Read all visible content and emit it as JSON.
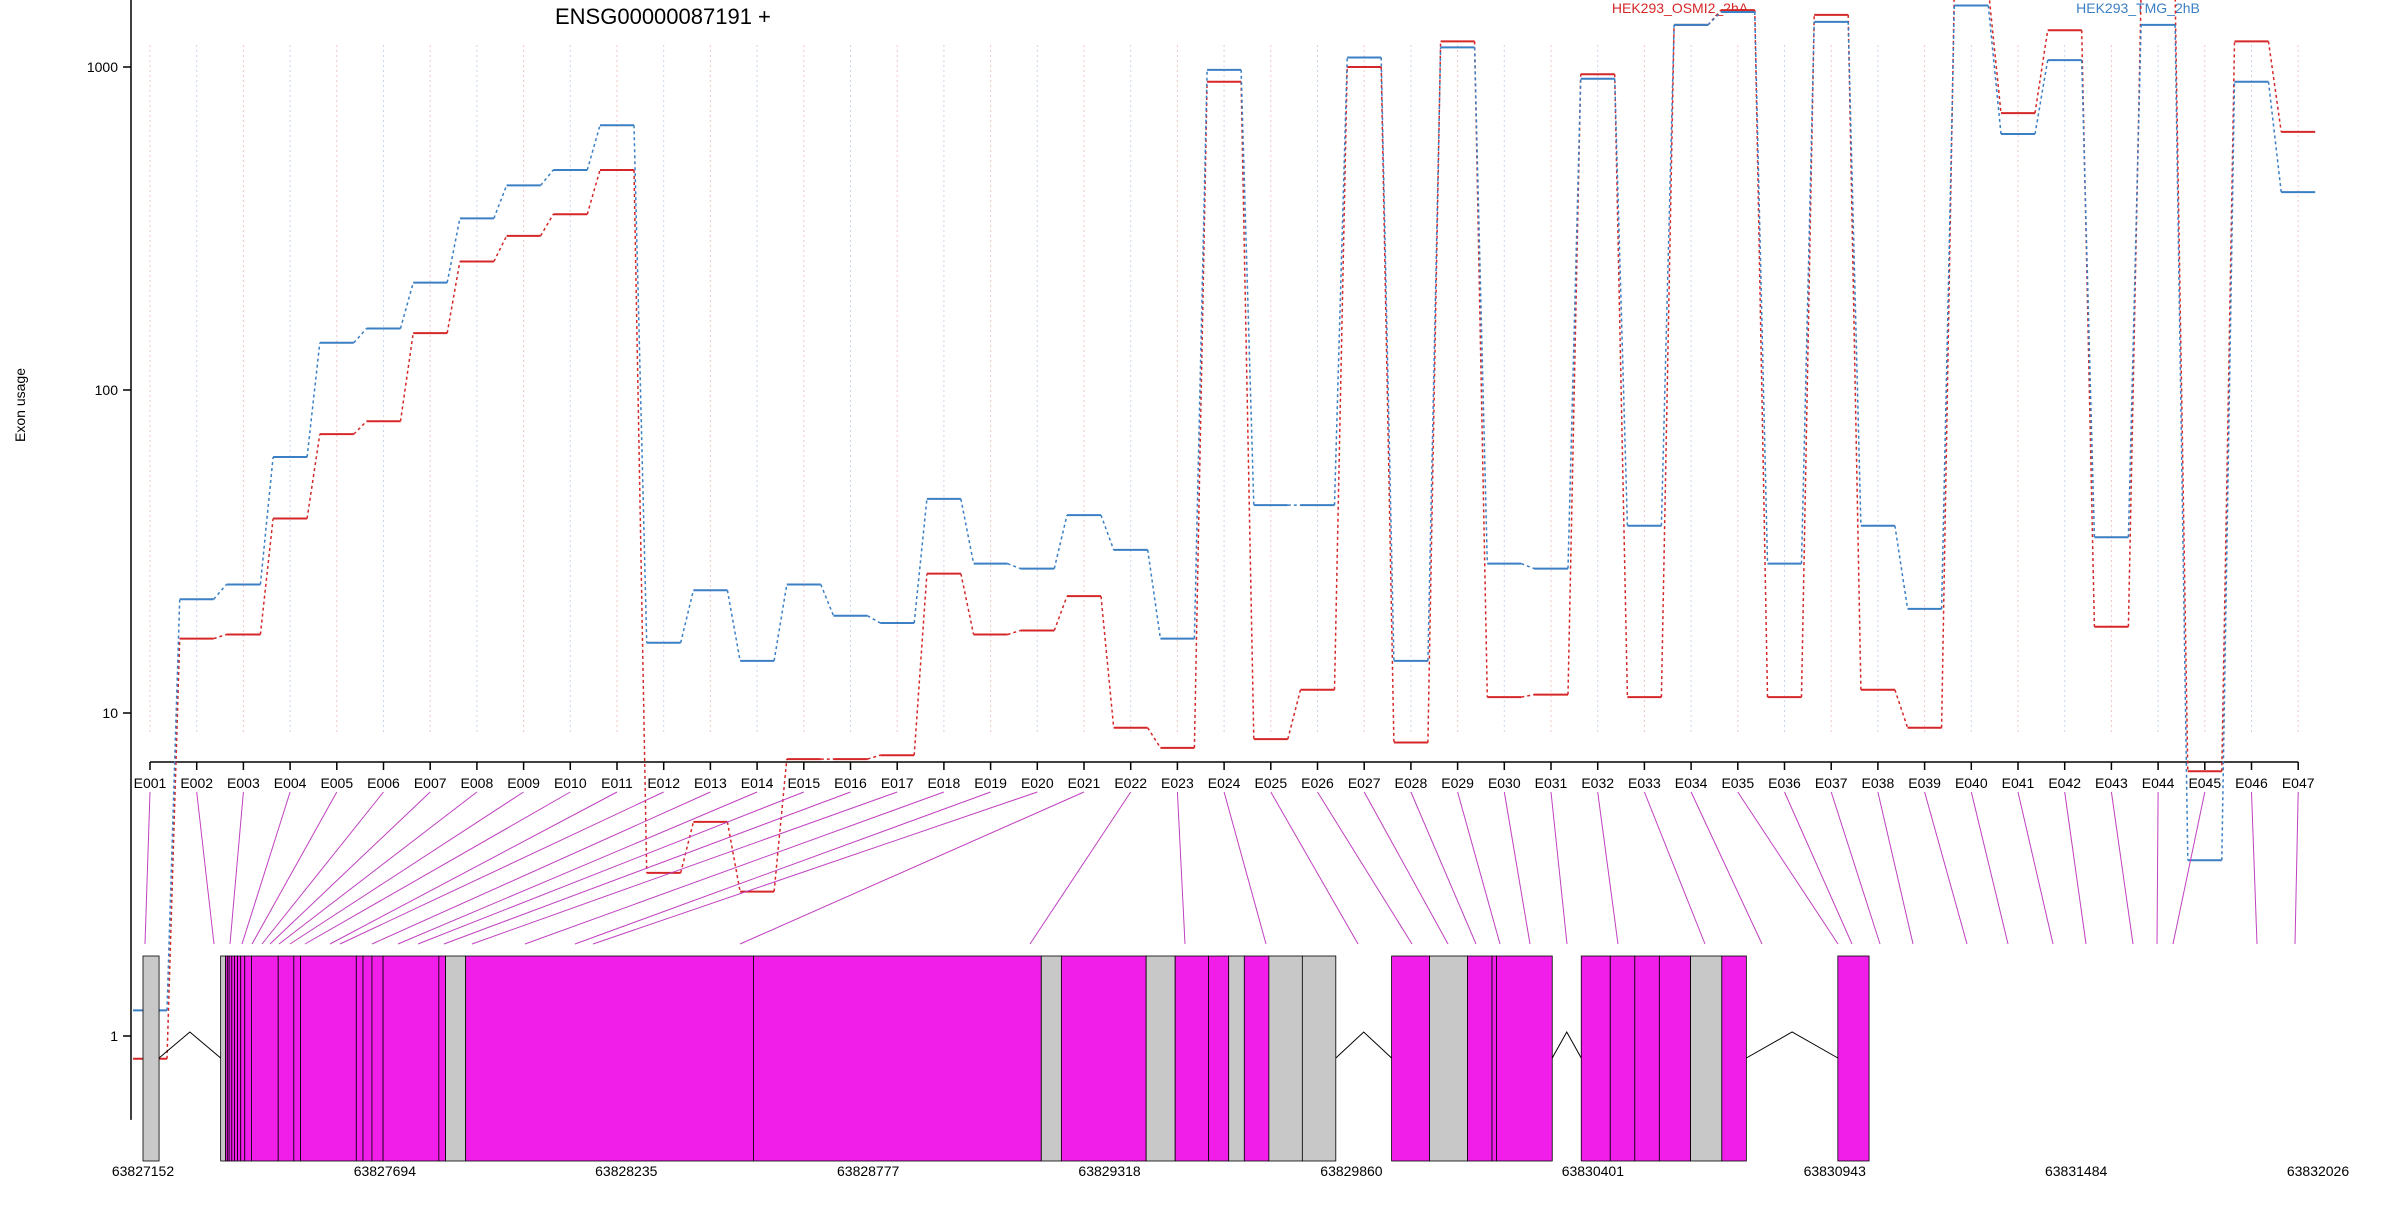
{
  "chart_data": {
    "type": "line",
    "title": "ENSG00000087191 +",
    "ylabel": "Exon usage",
    "xlabel": "",
    "yscale": "log",
    "ylim": [
      0.55,
      2400
    ],
    "yticks": [
      1,
      10,
      100,
      1000
    ],
    "ytick_labels": [
      "1",
      "10",
      "100",
      "1000"
    ],
    "grid": "vertical dotted lines at each exon",
    "legend_position": "top",
    "categories": [
      "E001",
      "E002",
      "E003",
      "E004",
      "E005",
      "E006",
      "E007",
      "E008",
      "E009",
      "E010",
      "E011",
      "E012",
      "E013",
      "E014",
      "E015",
      "E016",
      "E017",
      "E018",
      "E019",
      "E020",
      "E021",
      "E022",
      "E023",
      "E024",
      "E025",
      "E026",
      "E027",
      "E028",
      "E029",
      "E030",
      "E031",
      "E032",
      "E033",
      "E034",
      "E035",
      "E036",
      "E037",
      "E038",
      "E039",
      "E040",
      "E041",
      "E042",
      "E043",
      "E044",
      "E045",
      "E046",
      "E047"
    ],
    "series": [
      {
        "name": "HEK293_OSMI2_2hA",
        "color": "#d62728",
        "values": [
          0.85,
          17,
          17.5,
          40,
          73,
          80,
          150,
          250,
          300,
          350,
          480,
          3.2,
          4.6,
          2.8,
          7.2,
          7.2,
          7.4,
          27,
          17.5,
          18,
          23,
          9,
          7.8,
          900,
          8.3,
          11.8,
          1000,
          8.1,
          1200,
          11.2,
          11.4,
          950,
          11.2,
          1350,
          1500,
          11.2,
          1450,
          11.8,
          9,
          1750,
          720,
          1300,
          18.5,
          1700,
          6.6,
          1200,
          630
        ]
      },
      {
        "name": "HEK293_TMG_2hB",
        "color": "#3b7fc4",
        "values": [
          1.2,
          22.5,
          25,
          62,
          140,
          155,
          215,
          340,
          430,
          480,
          660,
          16.5,
          24,
          14.5,
          25,
          20,
          19,
          46,
          29,
          28,
          41,
          32,
          17,
          980,
          44,
          44,
          1070,
          14.5,
          1150,
          29,
          28,
          920,
          38,
          1350,
          1480,
          29,
          1380,
          38,
          21,
          1550,
          620,
          1050,
          35,
          1350,
          3.5,
          900,
          410
        ]
      }
    ],
    "gene_model": {
      "start": 63827152,
      "end": 63832026,
      "tick_labels": [
        "63827152",
        "63827694",
        "63828235",
        "63828777",
        "63829318",
        "63829860",
        "63830401",
        "63830943",
        "63831484",
        "63832026"
      ],
      "colors": {
        "tested_exon": "#f01ee8",
        "other_exon": "#c8c8c8",
        "link": "#c040c0"
      }
    }
  }
}
